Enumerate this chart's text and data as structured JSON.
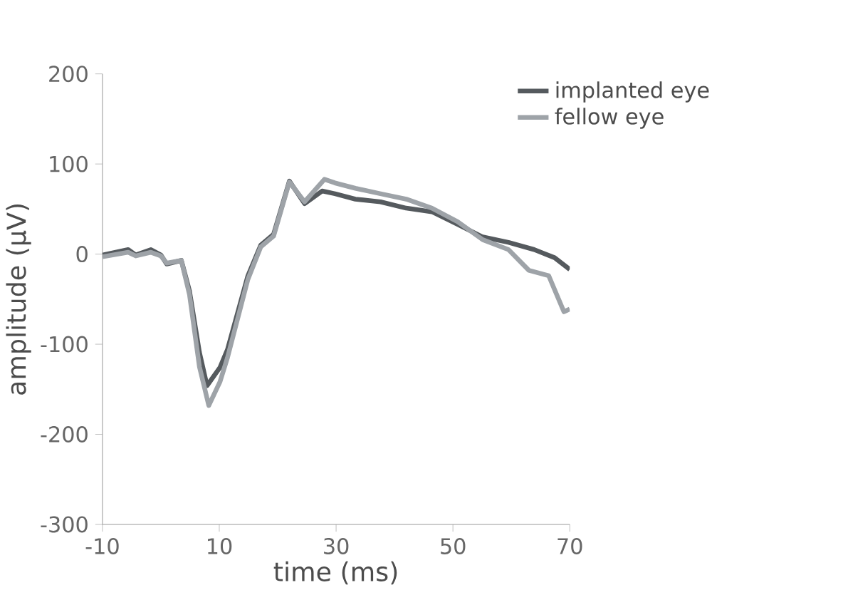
{
  "chart_data": {
    "type": "line",
    "xlabel": "time (ms)",
    "ylabel": "amplitude (µV)",
    "xlim": [
      -10,
      70
    ],
    "xticks": [
      -10,
      10,
      30,
      50,
      70
    ],
    "ylim": [
      -300,
      200
    ],
    "yticks": [
      -300,
      -200,
      -100,
      0,
      100,
      200
    ],
    "grid": false,
    "legend": "top right",
    "marker": "none",
    "line_style": "solid",
    "series": [
      {
        "name": "implanted eye",
        "color": "#555a5e",
        "x": [
          -10,
          -5.6,
          -4.3,
          -1.7,
          0,
          1,
          3.5,
          4.9,
          6.6,
          7.9,
          10.1,
          11.4,
          14.9,
          17.1,
          19.3,
          22,
          24.6,
          27.6,
          29.8,
          33.3,
          37.6,
          42,
          46.4,
          50.8,
          55.1,
          59.5,
          63.9,
          67.4,
          70
        ],
        "values": [
          -1,
          5,
          -1,
          5,
          -1,
          -11,
          -7,
          -41,
          -109,
          -146,
          -126,
          -106,
          -24,
          10,
          22,
          81,
          56,
          70,
          67,
          61,
          58,
          51,
          47,
          33,
          19,
          13,
          5,
          -4,
          -17
        ]
      },
      {
        "name": "fellow eye",
        "color": "#9ea3a8",
        "x": [
          -10,
          -5.6,
          -4.3,
          -1.7,
          0,
          1,
          3.5,
          4.9,
          6.6,
          8.2,
          10.1,
          11.4,
          14.9,
          17.1,
          19.3,
          22,
          24.6,
          28,
          29.8,
          33.3,
          37.6,
          42,
          46.4,
          50.8,
          55.1,
          59.5,
          63,
          66.4,
          69,
          70
        ],
        "values": [
          -3,
          2,
          -2,
          2,
          -2,
          -10,
          -7,
          -45,
          -125,
          -168,
          -142,
          -115,
          -28,
          8,
          20,
          80,
          58,
          83,
          79,
          73,
          67,
          61,
          51,
          36,
          16,
          5,
          -18,
          -24,
          -64,
          -61
        ]
      }
    ]
  }
}
